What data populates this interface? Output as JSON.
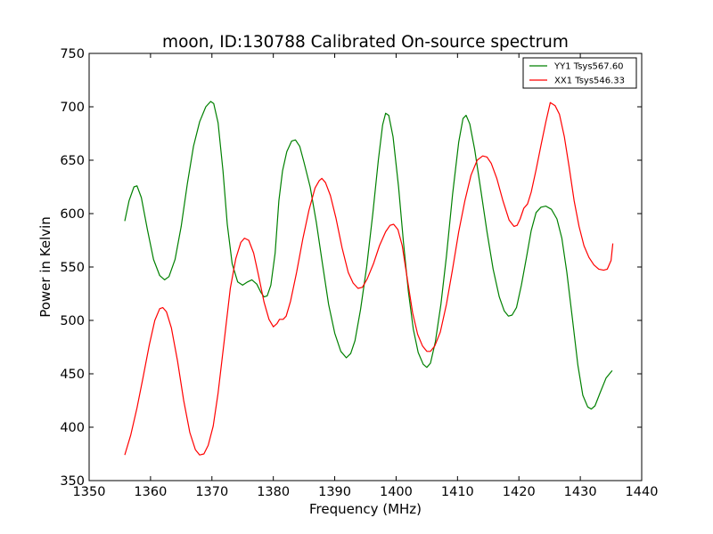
{
  "chart_data": {
    "type": "line",
    "title": "moon, ID:130788 Calibrated On-source spectrum",
    "xlabel": "Frequency (MHz)",
    "ylabel": "Power in Kelvin",
    "xlim": [
      1350,
      1440
    ],
    "ylim": [
      350,
      750
    ],
    "xticks": [
      1350,
      1360,
      1370,
      1380,
      1390,
      1400,
      1410,
      1420,
      1430,
      1440
    ],
    "yticks": [
      350,
      400,
      450,
      500,
      550,
      600,
      650,
      700,
      750
    ],
    "grid": false,
    "legend_position": "top-right",
    "series": [
      {
        "name": "YY1 Tsys567.60",
        "color": "#008000",
        "points": [
          [
            1355.8,
            593
          ],
          [
            1356.5,
            612
          ],
          [
            1357.3,
            625
          ],
          [
            1357.8,
            626
          ],
          [
            1358.5,
            615
          ],
          [
            1359.5,
            585
          ],
          [
            1360.5,
            557
          ],
          [
            1361.5,
            542
          ],
          [
            1362.3,
            538
          ],
          [
            1363.0,
            541
          ],
          [
            1364.0,
            557
          ],
          [
            1365.0,
            588
          ],
          [
            1366.0,
            628
          ],
          [
            1367.0,
            663
          ],
          [
            1368.0,
            686
          ],
          [
            1369.0,
            700
          ],
          [
            1369.8,
            705
          ],
          [
            1370.3,
            703
          ],
          [
            1371.0,
            685
          ],
          [
            1371.8,
            640
          ],
          [
            1372.5,
            590
          ],
          [
            1373.3,
            553
          ],
          [
            1374.2,
            536
          ],
          [
            1375.0,
            533
          ],
          [
            1375.8,
            536
          ],
          [
            1376.5,
            538
          ],
          [
            1377.3,
            534
          ],
          [
            1378.0,
            526
          ],
          [
            1378.5,
            522
          ],
          [
            1379.0,
            523
          ],
          [
            1379.6,
            533
          ],
          [
            1380.3,
            563
          ],
          [
            1380.9,
            612
          ],
          [
            1381.5,
            640
          ],
          [
            1382.2,
            658
          ],
          [
            1383.0,
            668
          ],
          [
            1383.6,
            669
          ],
          [
            1384.3,
            663
          ],
          [
            1385.0,
            648
          ],
          [
            1386.0,
            625
          ],
          [
            1387.0,
            592
          ],
          [
            1388.0,
            553
          ],
          [
            1389.0,
            515
          ],
          [
            1390.0,
            488
          ],
          [
            1391.0,
            471
          ],
          [
            1391.9,
            465
          ],
          [
            1392.6,
            469
          ],
          [
            1393.3,
            481
          ],
          [
            1394.2,
            510
          ],
          [
            1395.2,
            550
          ],
          [
            1396.2,
            600
          ],
          [
            1397.1,
            650
          ],
          [
            1397.8,
            683
          ],
          [
            1398.3,
            694
          ],
          [
            1398.8,
            692
          ],
          [
            1399.5,
            672
          ],
          [
            1400.4,
            625
          ],
          [
            1401.2,
            573
          ],
          [
            1402.0,
            527
          ],
          [
            1402.8,
            492
          ],
          [
            1403.6,
            470
          ],
          [
            1404.4,
            459
          ],
          [
            1405.0,
            456
          ],
          [
            1405.6,
            460
          ],
          [
            1406.4,
            480
          ],
          [
            1407.3,
            515
          ],
          [
            1408.2,
            560
          ],
          [
            1409.2,
            618
          ],
          [
            1410.2,
            667
          ],
          [
            1410.9,
            689
          ],
          [
            1411.4,
            692
          ],
          [
            1412.0,
            684
          ],
          [
            1412.8,
            660
          ],
          [
            1413.8,
            622
          ],
          [
            1414.8,
            583
          ],
          [
            1415.8,
            548
          ],
          [
            1416.8,
            522
          ],
          [
            1417.6,
            509
          ],
          [
            1418.3,
            504
          ],
          [
            1418.9,
            505
          ],
          [
            1419.6,
            512
          ],
          [
            1420.4,
            533
          ],
          [
            1421.2,
            558
          ],
          [
            1422.0,
            584
          ],
          [
            1422.8,
            601
          ],
          [
            1423.6,
            606
          ],
          [
            1424.4,
            607
          ],
          [
            1425.3,
            604
          ],
          [
            1426.2,
            595
          ],
          [
            1427.0,
            577
          ],
          [
            1427.8,
            545
          ],
          [
            1428.7,
            502
          ],
          [
            1429.6,
            458
          ],
          [
            1430.4,
            430
          ],
          [
            1431.2,
            419
          ],
          [
            1431.8,
            417
          ],
          [
            1432.4,
            420
          ],
          [
            1433.2,
            432
          ],
          [
            1434.2,
            446
          ],
          [
            1435.2,
            453
          ]
        ]
      },
      {
        "name": "XX1 Tsys546.33",
        "color": "#ff0000",
        "points": [
          [
            1355.8,
            374
          ],
          [
            1356.8,
            393
          ],
          [
            1357.8,
            418
          ],
          [
            1358.8,
            447
          ],
          [
            1359.8,
            477
          ],
          [
            1360.7,
            500
          ],
          [
            1361.5,
            511
          ],
          [
            1362.0,
            512
          ],
          [
            1362.6,
            508
          ],
          [
            1363.4,
            493
          ],
          [
            1364.4,
            462
          ],
          [
            1365.4,
            425
          ],
          [
            1366.4,
            395
          ],
          [
            1367.3,
            379
          ],
          [
            1368.0,
            374
          ],
          [
            1368.7,
            375
          ],
          [
            1369.4,
            383
          ],
          [
            1370.2,
            401
          ],
          [
            1371.0,
            432
          ],
          [
            1372.0,
            481
          ],
          [
            1373.0,
            530
          ],
          [
            1373.9,
            558
          ],
          [
            1374.7,
            573
          ],
          [
            1375.3,
            577
          ],
          [
            1376.0,
            575
          ],
          [
            1376.8,
            563
          ],
          [
            1377.6,
            542
          ],
          [
            1378.5,
            517
          ],
          [
            1379.3,
            501
          ],
          [
            1380.0,
            494
          ],
          [
            1380.6,
            497
          ],
          [
            1381.0,
            501
          ],
          [
            1381.6,
            501
          ],
          [
            1382.1,
            504
          ],
          [
            1382.8,
            518
          ],
          [
            1383.8,
            545
          ],
          [
            1384.8,
            576
          ],
          [
            1385.8,
            603
          ],
          [
            1386.8,
            624
          ],
          [
            1387.5,
            631
          ],
          [
            1387.9,
            633
          ],
          [
            1388.5,
            629
          ],
          [
            1389.3,
            617
          ],
          [
            1390.2,
            596
          ],
          [
            1391.2,
            568
          ],
          [
            1392.2,
            545
          ],
          [
            1393.0,
            535
          ],
          [
            1393.8,
            530
          ],
          [
            1394.5,
            531
          ],
          [
            1395.3,
            539
          ],
          [
            1396.3,
            553
          ],
          [
            1397.3,
            570
          ],
          [
            1398.3,
            583
          ],
          [
            1399.0,
            589
          ],
          [
            1399.6,
            590
          ],
          [
            1400.3,
            585
          ],
          [
            1401.0,
            570
          ],
          [
            1401.8,
            540
          ],
          [
            1402.7,
            507
          ],
          [
            1403.5,
            487
          ],
          [
            1404.3,
            476
          ],
          [
            1405.0,
            471
          ],
          [
            1405.6,
            471
          ],
          [
            1406.3,
            476
          ],
          [
            1407.2,
            489
          ],
          [
            1408.2,
            515
          ],
          [
            1409.2,
            548
          ],
          [
            1410.2,
            583
          ],
          [
            1411.2,
            612
          ],
          [
            1412.2,
            636
          ],
          [
            1413.2,
            650
          ],
          [
            1414.1,
            654
          ],
          [
            1414.8,
            653
          ],
          [
            1415.5,
            647
          ],
          [
            1416.4,
            633
          ],
          [
            1417.4,
            612
          ],
          [
            1418.4,
            594
          ],
          [
            1419.2,
            588
          ],
          [
            1419.7,
            589
          ],
          [
            1420.2,
            595
          ],
          [
            1420.8,
            605
          ],
          [
            1421.4,
            609
          ],
          [
            1422.0,
            620
          ],
          [
            1422.8,
            641
          ],
          [
            1423.6,
            664
          ],
          [
            1424.4,
            686
          ],
          [
            1425.1,
            704
          ],
          [
            1425.9,
            701
          ],
          [
            1426.6,
            693
          ],
          [
            1427.4,
            672
          ],
          [
            1428.2,
            643
          ],
          [
            1429.0,
            612
          ],
          [
            1429.8,
            588
          ],
          [
            1430.6,
            570
          ],
          [
            1431.4,
            559
          ],
          [
            1432.2,
            552
          ],
          [
            1433.0,
            548
          ],
          [
            1433.8,
            547
          ],
          [
            1434.4,
            548
          ],
          [
            1435.0,
            556
          ],
          [
            1435.3,
            572
          ]
        ]
      }
    ]
  }
}
